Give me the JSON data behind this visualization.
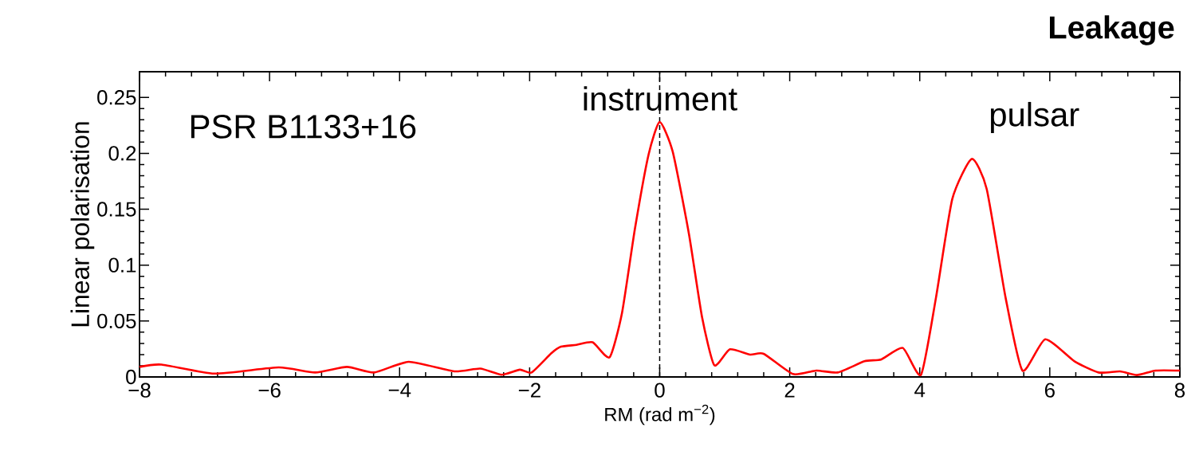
{
  "chart_data": {
    "type": "line",
    "title": "Leakage",
    "xlabel": "RM (rad m$^{−2}$)",
    "ylabel": "Linear polarisation",
    "annotations": [
      "PSR B1133+16",
      {
        "text": "instrument",
        "x": 0,
        "y": 0.238
      },
      "pulsar"
    ],
    "series": [
      {
        "color": "#ff0000",
        "x": [
          -8,
          -7.66,
          -6.85,
          -5.86,
          -5.3,
          -4.81,
          -4.39,
          -3.86,
          -3.16,
          -2.76,
          -2.43,
          -2.15,
          -1.97,
          -1.67,
          -1.52,
          -1.28,
          -1.03,
          -0.77,
          -0.58,
          -0.38,
          -0.17,
          0,
          0.2,
          0.45,
          0.65,
          0.84,
          1.08,
          1.39,
          1.6,
          2.05,
          2.41,
          2.74,
          3.15,
          3.41,
          3.74,
          4.02,
          4.25,
          4.5,
          4.8,
          5.03,
          5.32,
          5.58,
          5.93,
          6.38,
          6.75,
          7.08,
          7.34,
          7.63,
          8
        ],
        "values": [
          0.009,
          0.011,
          0.003,
          0.0085,
          0.004,
          0.009,
          0.004,
          0.0135,
          0.005,
          0.0075,
          0.002,
          0.0065,
          0.004,
          0.021,
          0.027,
          0.0287,
          0.031,
          0.0176,
          0.057,
          0.1327,
          0.199,
          0.228,
          0.2016,
          0.128,
          0.054,
          0.0105,
          0.0247,
          0.02,
          0.0207,
          0.0026,
          0.0057,
          0.004,
          0.014,
          0.0157,
          0.0259,
          0.002,
          0.071,
          0.159,
          0.195,
          0.168,
          0.071,
          0.0057,
          0.0337,
          0.014,
          0.004,
          0.005,
          0.0017,
          0.0057,
          0.0057
        ]
      }
    ],
    "ref_lines": [
      {
        "axis": "x",
        "value": 0,
        "color": "#000000",
        "line_style": "dashed"
      }
    ],
    "xlim": [
      -8,
      8
    ],
    "ylim": [
      0,
      0.273
    ],
    "xticks": [
      {
        "value": -8,
        "label": "−8"
      },
      {
        "value": -6,
        "label": "−6"
      },
      {
        "value": -4,
        "label": "−4"
      },
      {
        "value": -2,
        "label": "−2"
      },
      0,
      2,
      4,
      6,
      8
    ],
    "yticks": [
      0,
      0.05,
      0.1,
      0.15,
      0.2,
      0.25
    ]
  }
}
